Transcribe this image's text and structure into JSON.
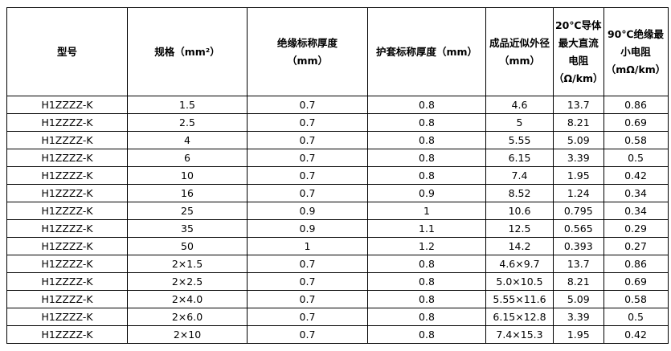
{
  "headers": [
    "型号",
    "规格（mm²）",
    "绝缘标称厚度（mm）",
    "护套标称厚度（mm）",
    "成品近似外径（mm）",
    "20℃导体最大直流电阻（Ω/km）",
    "90℃绝缘最小电阻（mΩ/km）"
  ],
  "rows": [
    [
      "H1ZZZZ-K",
      "1.5",
      "0.7",
      "0.8",
      "4.6",
      "13.7",
      "0.86"
    ],
    [
      "H1ZZZZ-K",
      "2.5",
      "0.7",
      "0.8",
      "5",
      "8.21",
      "0.69"
    ],
    [
      "H1ZZZZ-K",
      "4",
      "0.7",
      "0.8",
      "5.55",
      "5.09",
      "0.58"
    ],
    [
      "H1ZZZZ-K",
      "6",
      "0.7",
      "0.8",
      "6.15",
      "3.39",
      "0.5"
    ],
    [
      "H1ZZZZ-K",
      "10",
      "0.7",
      "0.8",
      "7.4",
      "1.95",
      "0.42"
    ],
    [
      "H1ZZZZ-K",
      "16",
      "0.7",
      "0.9",
      "8.52",
      "1.24",
      "0.34"
    ],
    [
      "H1ZZZZ-K",
      "25",
      "0.9",
      "1",
      "10.6",
      "0.795",
      "0.34"
    ],
    [
      "H1ZZZZ-K",
      "35",
      "0.9",
      "1.1",
      "12.5",
      "0.565",
      "0.29"
    ],
    [
      "H1ZZZZ-K",
      "50",
      "1",
      "1.2",
      "14.2",
      "0.393",
      "0.27"
    ],
    [
      "H1ZZZZ-K",
      "2×1.5",
      "0.7",
      "0.8",
      "4.6×9.7",
      "13.7",
      "0.86"
    ],
    [
      "H1ZZZZ-K",
      "2×2.5",
      "0.7",
      "0.8",
      "5.0×10.5",
      "8.21",
      "0.69"
    ],
    [
      "H1ZZZZ-K",
      "2×4.0",
      "0.7",
      "0.8",
      "5.55×11.6",
      "5.09",
      "0.58"
    ],
    [
      "H1ZZZZ-K",
      "2×6.0",
      "0.7",
      "0.8",
      "6.15×12.8",
      "3.39",
      "0.5"
    ],
    [
      "H1ZZZZ-K",
      "2×10",
      "0.7",
      "0.8",
      "7.4×15.3",
      "1.95",
      "0.42"
    ]
  ]
}
